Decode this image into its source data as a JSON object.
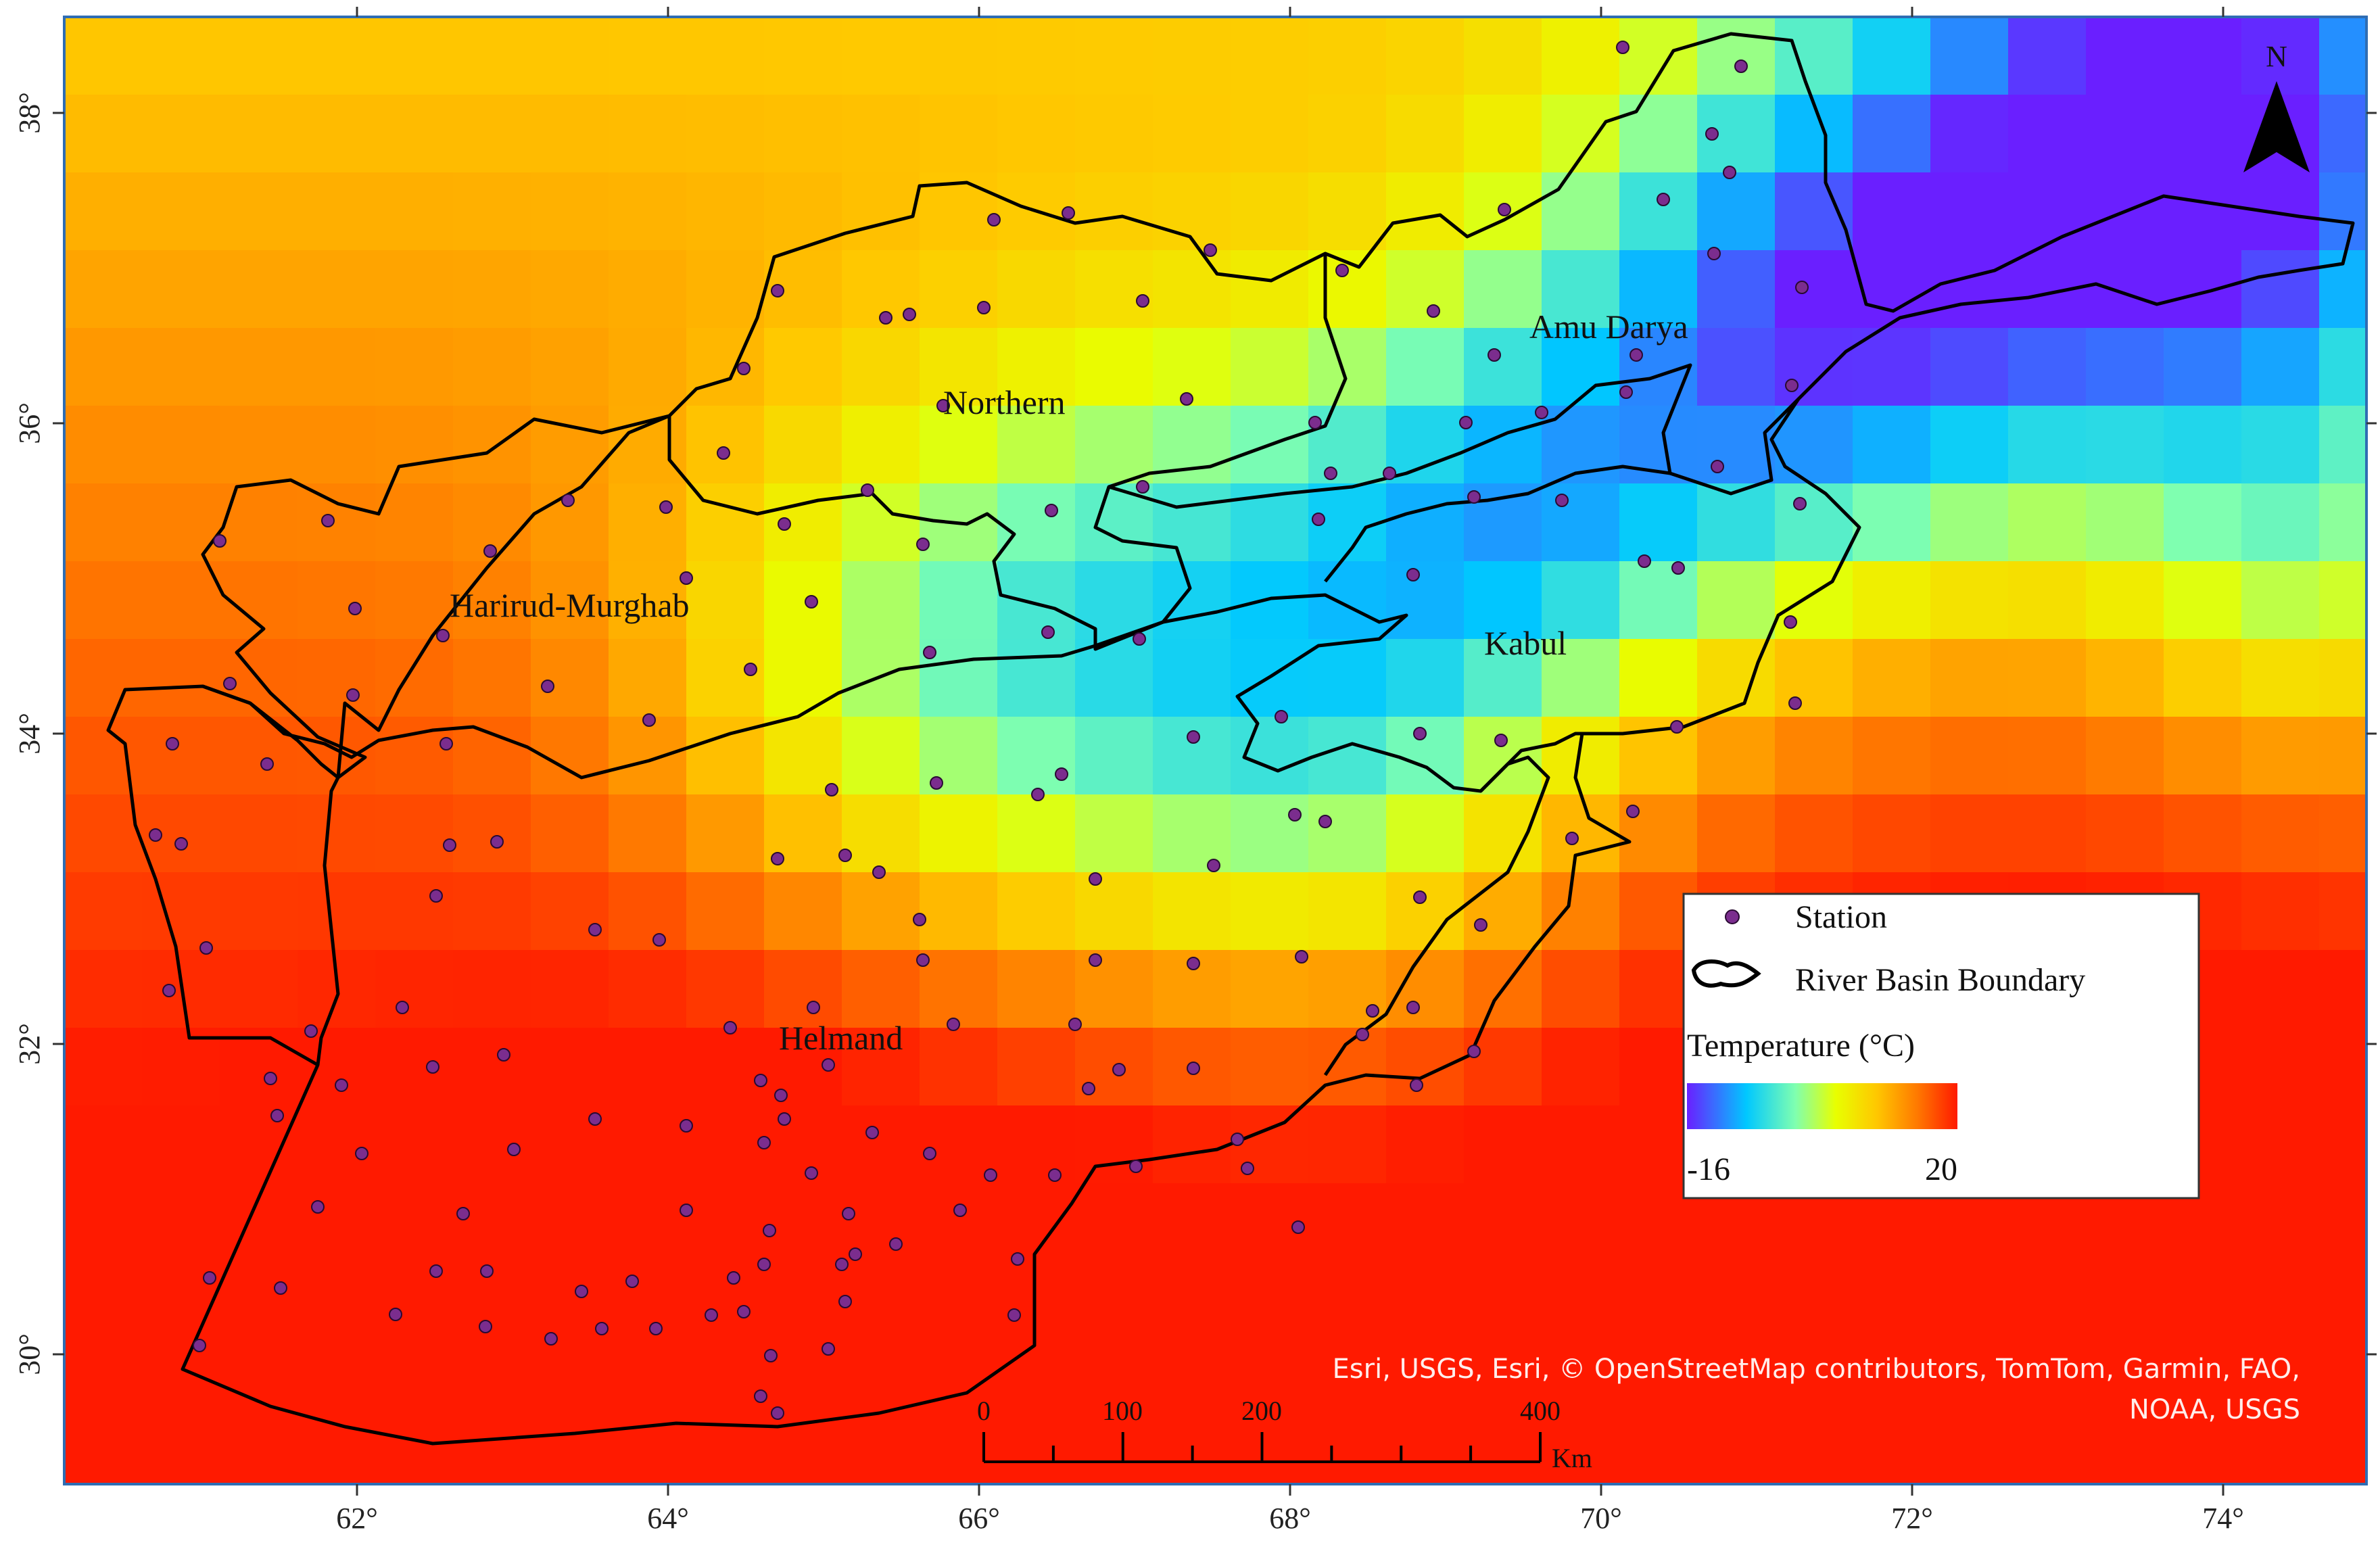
{
  "map": {
    "lon_labels": [
      "62°",
      "64°",
      "66°",
      "68°",
      "70°",
      "72°",
      "74°"
    ],
    "lat_labels": [
      "30°",
      "32°",
      "34°",
      "36°",
      "38°"
    ],
    "basins": [
      {
        "id": "northern",
        "name": "Northern"
      },
      {
        "id": "harirud",
        "name": "Harirud-Murghab"
      },
      {
        "id": "amu",
        "name": "Amu Darya"
      },
      {
        "id": "kabul",
        "name": "Kabul"
      },
      {
        "id": "helmand",
        "name": "Helmand"
      }
    ],
    "north_label": "N",
    "colors": {
      "station": "#7b2d8e",
      "boundary": "#000000",
      "frame": "#2f6db3"
    }
  },
  "legend": {
    "station_label": "Station",
    "boundary_label": "River Basin Boundary",
    "temperature_title": "Temperature (°C)",
    "min_label": "-16",
    "max_label": "20",
    "temp_min": -16,
    "temp_max": 20,
    "colormap": [
      "#6a1fff",
      "#00c8ff",
      "#7fffb0",
      "#e8ff00",
      "#ffc800",
      "#ff7a00",
      "#ff1a00"
    ]
  },
  "scale_bar": {
    "labels": [
      "0",
      "100",
      "200",
      "400"
    ],
    "unit": "Km"
  },
  "attribution": {
    "line1": "Esri, USGS, Esri, © OpenStreetMap contributors, TomTom, Garmin, FAO,",
    "line2": "NOAA, USGS"
  }
}
